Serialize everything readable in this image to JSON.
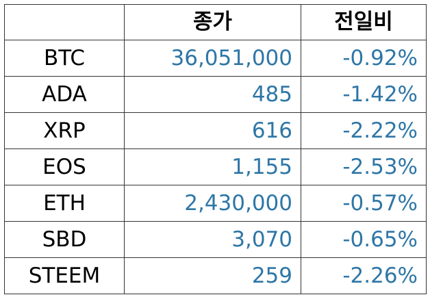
{
  "table": {
    "headers": {
      "name": "",
      "price": "종가",
      "change": "전일비"
    },
    "rows": [
      {
        "name": "BTC",
        "price": "36,051,000",
        "change": "-0.92%"
      },
      {
        "name": "ADA",
        "price": "485",
        "change": "-1.42%"
      },
      {
        "name": "XRP",
        "price": "616",
        "change": "-2.22%"
      },
      {
        "name": "EOS",
        "price": "1,155",
        "change": "-2.53%"
      },
      {
        "name": "ETH",
        "price": "2,430,000",
        "change": "-0.57%"
      },
      {
        "name": "SBD",
        "price": "3,070",
        "change": "-0.65%"
      },
      {
        "name": "STEEM",
        "price": "259",
        "change": "-2.26%"
      }
    ]
  },
  "colors": {
    "value_text": "#2e76a6",
    "border": "#333333"
  }
}
